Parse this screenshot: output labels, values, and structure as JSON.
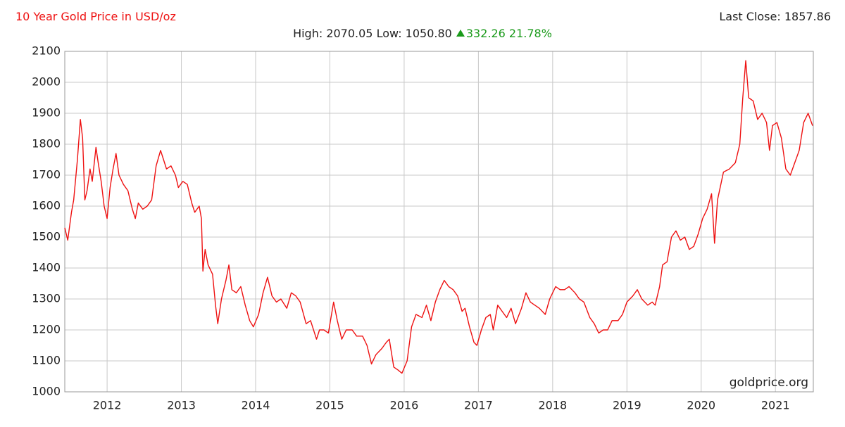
{
  "chart_data": {
    "type": "line",
    "title": "10 Year Gold Price in USD/oz",
    "subtitle": "High: 2070.05 Low: 1050.80",
    "change": "332.26 21.78%",
    "last_close": "Last Close: 1857.86",
    "watermark": "goldprice.org",
    "xlim": [
      2011.43,
      2021.51
    ],
    "xticks": [
      2012,
      2013,
      2014,
      2015,
      2016,
      2017,
      2018,
      2019,
      2020,
      2021
    ],
    "ylim": [
      1000,
      2100
    ],
    "yticks": [
      1000,
      1100,
      1200,
      1300,
      1400,
      1500,
      1600,
      1700,
      1800,
      1900,
      2000,
      2100
    ],
    "grid": true,
    "series": [
      {
        "color": "#ee1111",
        "x": [
          2011.43,
          2011.47,
          2011.52,
          2011.55,
          2011.6,
          2011.64,
          2011.67,
          2011.7,
          2011.73,
          2011.77,
          2011.8,
          2011.85,
          2011.88,
          2011.92,
          2011.96,
          2012.0,
          2012.04,
          2012.08,
          2012.12,
          2012.16,
          2012.22,
          2012.28,
          2012.34,
          2012.38,
          2012.42,
          2012.48,
          2012.54,
          2012.6,
          2012.66,
          2012.72,
          2012.76,
          2012.8,
          2012.86,
          2012.92,
          2012.96,
          2013.02,
          2013.08,
          2013.14,
          2013.18,
          2013.24,
          2013.27,
          2013.29,
          2013.32,
          2013.36,
          2013.42,
          2013.46,
          2013.49,
          2013.54,
          2013.6,
          2013.64,
          2013.68,
          2013.74,
          2013.8,
          2013.86,
          2013.92,
          2013.97,
          2014.04,
          2014.1,
          2014.16,
          2014.22,
          2014.28,
          2014.34,
          2014.42,
          2014.48,
          2014.54,
          2014.6,
          2014.68,
          2014.74,
          2014.82,
          2014.86,
          2014.92,
          2014.98,
          2015.05,
          2015.1,
          2015.16,
          2015.22,
          2015.3,
          2015.36,
          2015.44,
          2015.5,
          2015.56,
          2015.62,
          2015.7,
          2015.76,
          2015.8,
          2015.86,
          2015.92,
          2015.97,
          2016.04,
          2016.1,
          2016.16,
          2016.24,
          2016.3,
          2016.36,
          2016.42,
          2016.48,
          2016.54,
          2016.6,
          2016.66,
          2016.72,
          2016.78,
          2016.82,
          2016.88,
          2016.94,
          2016.98,
          2017.04,
          2017.1,
          2017.16,
          2017.2,
          2017.26,
          2017.32,
          2017.38,
          2017.44,
          2017.5,
          2017.58,
          2017.64,
          2017.7,
          2017.76,
          2017.82,
          2017.9,
          2017.96,
          2018.04,
          2018.1,
          2018.16,
          2018.22,
          2018.3,
          2018.36,
          2018.42,
          2018.5,
          2018.56,
          2018.62,
          2018.68,
          2018.74,
          2018.8,
          2018.88,
          2018.94,
          2019.0,
          2019.08,
          2019.14,
          2019.2,
          2019.28,
          2019.34,
          2019.38,
          2019.44,
          2019.48,
          2019.54,
          2019.6,
          2019.66,
          2019.72,
          2019.78,
          2019.84,
          2019.9,
          2019.96,
          2020.02,
          2020.08,
          2020.14,
          2020.18,
          2020.22,
          2020.3,
          2020.38,
          2020.46,
          2020.52,
          2020.56,
          2020.6,
          2020.64,
          2020.7,
          2020.76,
          2020.82,
          2020.88,
          2020.92,
          2020.96,
          2021.02,
          2021.08,
          2021.14,
          2021.2,
          2021.26,
          2021.32,
          2021.38,
          2021.44,
          2021.5
        ],
        "values": [
          1530,
          1490,
          1580,
          1620,
          1750,
          1880,
          1820,
          1620,
          1650,
          1720,
          1680,
          1790,
          1740,
          1680,
          1600,
          1560,
          1660,
          1720,
          1770,
          1700,
          1670,
          1650,
          1590,
          1560,
          1610,
          1590,
          1600,
          1620,
          1730,
          1780,
          1750,
          1720,
          1730,
          1700,
          1660,
          1680,
          1670,
          1610,
          1580,
          1600,
          1560,
          1390,
          1460,
          1410,
          1380,
          1280,
          1220,
          1300,
          1360,
          1410,
          1330,
          1320,
          1340,
          1280,
          1230,
          1210,
          1250,
          1320,
          1370,
          1310,
          1290,
          1300,
          1270,
          1320,
          1310,
          1290,
          1220,
          1230,
          1170,
          1200,
          1200,
          1190,
          1290,
          1230,
          1170,
          1200,
          1200,
          1180,
          1180,
          1150,
          1090,
          1120,
          1140,
          1160,
          1170,
          1080,
          1070,
          1060,
          1100,
          1210,
          1250,
          1240,
          1280,
          1230,
          1290,
          1330,
          1360,
          1340,
          1330,
          1310,
          1260,
          1270,
          1210,
          1160,
          1150,
          1200,
          1240,
          1250,
          1200,
          1280,
          1260,
          1240,
          1270,
          1220,
          1270,
          1320,
          1290,
          1280,
          1270,
          1250,
          1300,
          1340,
          1330,
          1330,
          1340,
          1320,
          1300,
          1290,
          1240,
          1220,
          1190,
          1200,
          1200,
          1230,
          1230,
          1250,
          1290,
          1310,
          1330,
          1300,
          1280,
          1290,
          1280,
          1340,
          1410,
          1420,
          1500,
          1520,
          1490,
          1500,
          1460,
          1470,
          1510,
          1560,
          1590,
          1640,
          1480,
          1620,
          1710,
          1720,
          1740,
          1800,
          1950,
          2070,
          1950,
          1940,
          1880,
          1900,
          1870,
          1780,
          1860,
          1870,
          1820,
          1720,
          1700,
          1740,
          1780,
          1870,
          1900,
          1860
        ]
      }
    ]
  }
}
